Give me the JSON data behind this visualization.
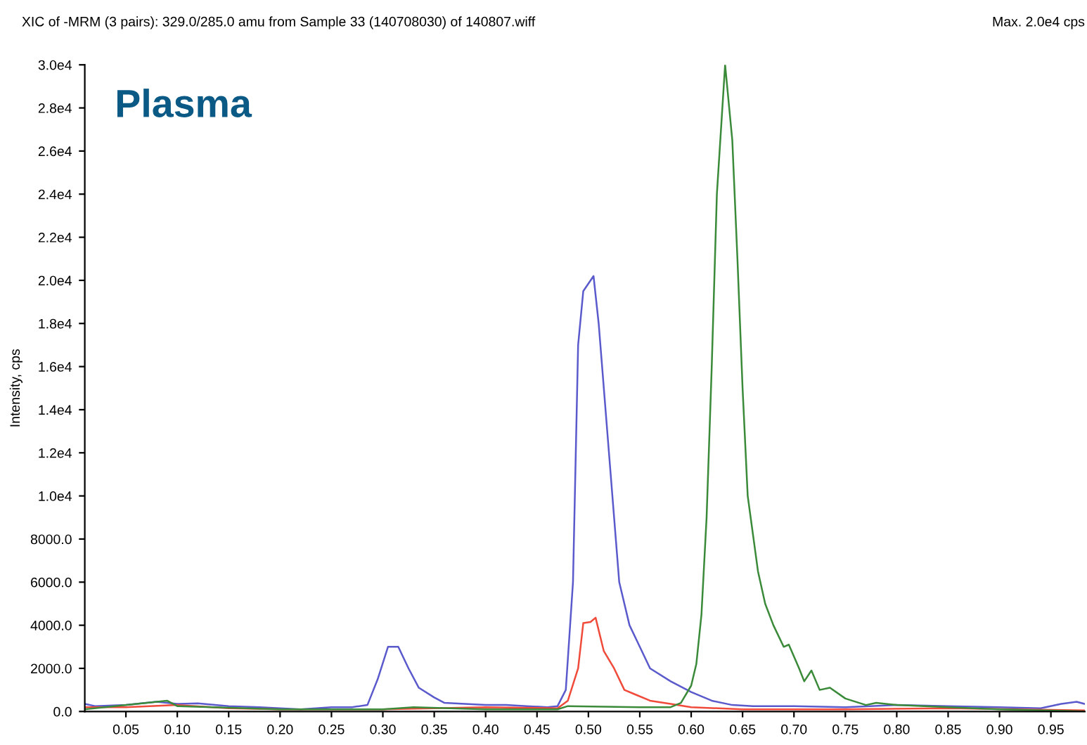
{
  "chart_data": {
    "type": "line",
    "title": "XIC of -MRM (3 pairs): 329.0/285.0 amu from Sample 33 (140708030) of 140807.wiff",
    "subtitle": "Max. 2.0e4 cps",
    "ylabel": "Intensity, cps",
    "annotations": [
      "Plasma"
    ],
    "xlim": [
      0.01,
      0.983
    ],
    "ylim": [
      0,
      30000
    ],
    "xticks": [
      {
        "value": 0.05,
        "label": "0.05"
      },
      {
        "value": 0.1,
        "label": "0.10"
      },
      {
        "value": 0.15,
        "label": "0.15"
      },
      {
        "value": 0.2,
        "label": "0.20"
      },
      {
        "value": 0.25,
        "label": "0.25"
      },
      {
        "value": 0.3,
        "label": "0.30"
      },
      {
        "value": 0.35,
        "label": "0.35"
      },
      {
        "value": 0.4,
        "label": "0.40"
      },
      {
        "value": 0.45,
        "label": "0.45"
      },
      {
        "value": 0.5,
        "label": "0.50"
      },
      {
        "value": 0.55,
        "label": "0.55"
      },
      {
        "value": 0.6,
        "label": "0.60"
      },
      {
        "value": 0.65,
        "label": "0.65"
      },
      {
        "value": 0.7,
        "label": "0.70"
      },
      {
        "value": 0.75,
        "label": "0.75"
      },
      {
        "value": 0.8,
        "label": "0.80"
      },
      {
        "value": 0.85,
        "label": "0.85"
      },
      {
        "value": 0.9,
        "label": "0.90"
      },
      {
        "value": 0.95,
        "label": "0.95"
      }
    ],
    "yticks": [
      {
        "value": 0,
        "label": "0.0"
      },
      {
        "value": 2000,
        "label": "2000.0"
      },
      {
        "value": 4000,
        "label": "4000.0"
      },
      {
        "value": 6000,
        "label": "6000.0"
      },
      {
        "value": 8000,
        "label": "8000.0"
      },
      {
        "value": 10000,
        "label": "1.0e4"
      },
      {
        "value": 12000,
        "label": "1.2e4"
      },
      {
        "value": 14000,
        "label": "1.4e4"
      },
      {
        "value": 16000,
        "label": "1.6e4"
      },
      {
        "value": 18000,
        "label": "1.8e4"
      },
      {
        "value": 20000,
        "label": "2.0e4"
      },
      {
        "value": 22000,
        "label": "2.2e4"
      },
      {
        "value": 24000,
        "label": "2.4e4"
      },
      {
        "value": 26000,
        "label": "2.6e4"
      },
      {
        "value": 28000,
        "label": "2.8e4"
      },
      {
        "value": 30000,
        "label": "3.0e4"
      }
    ],
    "grid": false,
    "legend": false,
    "marker": "none",
    "line_style": "solid",
    "series": [
      {
        "color": "#5a5acc",
        "x": [
          0.01,
          0.02,
          0.05,
          0.08,
          0.1,
          0.12,
          0.15,
          0.18,
          0.22,
          0.25,
          0.27,
          0.285,
          0.295,
          0.305,
          0.315,
          0.325,
          0.335,
          0.35,
          0.36,
          0.38,
          0.4,
          0.42,
          0.44,
          0.46,
          0.47,
          0.478,
          0.485,
          0.49,
          0.495,
          0.505,
          0.51,
          0.52,
          0.53,
          0.54,
          0.55,
          0.56,
          0.58,
          0.6,
          0.62,
          0.64,
          0.66,
          0.7,
          0.75,
          0.8,
          0.85,
          0.9,
          0.94,
          0.96,
          0.975,
          0.983
        ],
        "values": [
          350,
          250,
          300,
          450,
          350,
          380,
          250,
          200,
          100,
          200,
          200,
          300,
          1500,
          3000,
          3000,
          2000,
          1100,
          650,
          400,
          350,
          300,
          300,
          250,
          200,
          250,
          1000,
          6000,
          17000,
          19500,
          20200,
          18000,
          12000,
          6000,
          4000,
          3000,
          2000,
          1400,
          900,
          500,
          300,
          250,
          250,
          200,
          300,
          250,
          200,
          150,
          350,
          450,
          350
        ]
      },
      {
        "color": "#f04a3a",
        "x": [
          0.01,
          0.05,
          0.1,
          0.15,
          0.2,
          0.3,
          0.4,
          0.47,
          0.48,
          0.49,
          0.495,
          0.502,
          0.507,
          0.515,
          0.525,
          0.535,
          0.545,
          0.56,
          0.58,
          0.6,
          0.65,
          0.75,
          0.85,
          0.983
        ],
        "values": [
          200,
          200,
          300,
          150,
          100,
          100,
          200,
          150,
          500,
          2000,
          4100,
          4150,
          4350,
          2800,
          2000,
          1000,
          800,
          500,
          350,
          200,
          100,
          100,
          150,
          50
        ]
      },
      {
        "color": "#3a8a3a",
        "x": [
          0.01,
          0.09,
          0.1,
          0.2,
          0.3,
          0.33,
          0.4,
          0.47,
          0.48,
          0.55,
          0.58,
          0.59,
          0.6,
          0.605,
          0.61,
          0.615,
          0.62,
          0.625,
          0.633,
          0.64,
          0.645,
          0.65,
          0.655,
          0.665,
          0.672,
          0.68,
          0.69,
          0.695,
          0.705,
          0.71,
          0.717,
          0.725,
          0.735,
          0.75,
          0.77,
          0.78,
          0.8,
          0.85,
          0.9,
          0.983
        ],
        "values": [
          100,
          500,
          250,
          100,
          100,
          200,
          100,
          100,
          250,
          200,
          200,
          400,
          1200,
          2200,
          4500,
          9000,
          16000,
          24000,
          30000,
          26500,
          21000,
          15000,
          10000,
          6500,
          5000,
          4000,
          3000,
          3100,
          2000,
          1400,
          1900,
          1000,
          1100,
          600,
          300,
          400,
          300,
          200,
          100,
          0
        ]
      }
    ]
  }
}
